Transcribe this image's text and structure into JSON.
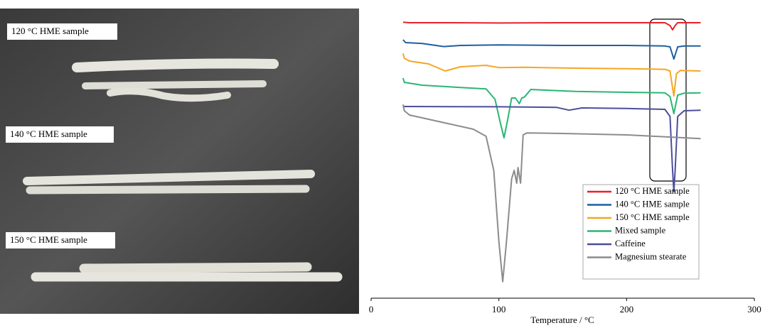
{
  "photo": {
    "labels": [
      "120 °C HME sample",
      "140 °C HME sample",
      "150 °C HME sample"
    ]
  },
  "chart_data": {
    "type": "line",
    "xlabel": "Temperature / °C",
    "xlim": [
      0,
      300
    ],
    "xticks": [
      0,
      100,
      200,
      300
    ],
    "ylim": [
      0,
      100
    ],
    "series": [
      {
        "name": "120 °C HME sample",
        "color": "#e8212a",
        "x": [
          25,
          30,
          60,
          100,
          150,
          200,
          230,
          234,
          236,
          238,
          240,
          258
        ],
        "values": [
          97.2,
          97,
          97,
          96.9,
          97,
          97,
          97,
          96,
          94.5,
          96,
          97,
          97
        ]
      },
      {
        "name": "140 °C HME sample",
        "color": "#1f5fa0",
        "x": [
          25,
          27,
          40,
          57,
          70,
          100,
          150,
          200,
          230,
          234,
          237,
          240,
          245,
          258
        ],
        "values": [
          91,
          90,
          89.7,
          88.6,
          89,
          89.2,
          89,
          89,
          88.8,
          88.5,
          84.2,
          88.5,
          88.8,
          88.8
        ]
      },
      {
        "name": "150 °C HME sample",
        "color": "#f5a623",
        "x": [
          25,
          26,
          30,
          45,
          58,
          70,
          90,
          100,
          120,
          160,
          200,
          230,
          234,
          236,
          237,
          239,
          242,
          258
        ],
        "values": [
          86.2,
          84.5,
          83.5,
          82.5,
          80,
          81.5,
          82,
          81.2,
          81.3,
          81,
          80.8,
          80.6,
          80,
          74,
          71.2,
          79,
          80.2,
          80
        ]
      },
      {
        "name": "Mixed sample",
        "color": "#2bb673",
        "x": [
          25,
          26,
          40,
          70,
          90,
          97,
          101,
          104,
          107,
          110,
          113,
          116,
          118,
          120,
          125,
          140,
          160,
          200,
          230,
          234,
          237,
          240,
          245,
          258
        ],
        "values": [
          77.5,
          76,
          75,
          74.2,
          73.7,
          70,
          62,
          56.5,
          63,
          70.5,
          70.5,
          68.5,
          70.5,
          70.8,
          73.5,
          73.2,
          72.8,
          72.5,
          72.3,
          71,
          65,
          71.5,
          72.2,
          72.3
        ]
      },
      {
        "name": "Caffeine",
        "color": "#4b4e9c",
        "x": [
          25,
          100,
          145,
          155,
          165,
          200,
          230,
          234,
          236,
          237,
          238,
          240,
          245,
          258
        ],
        "values": [
          67.5,
          67.4,
          67.2,
          66.2,
          67,
          66.8,
          66.5,
          64,
          45,
          37.5,
          45,
          64,
          66,
          66.2
        ]
      },
      {
        "name": "Magnesium stearate",
        "color": "#8c8c8c",
        "x": [
          25,
          26,
          30,
          60,
          80,
          90,
          96,
          100,
          103,
          106,
          110,
          112,
          114,
          115,
          117,
          119,
          122,
          150,
          200,
          258
        ],
        "values": [
          68.2,
          66,
          64.5,
          61.5,
          59.5,
          57,
          45,
          20,
          5.8,
          20,
          42,
          45,
          40.5,
          46,
          40.5,
          57.5,
          58.2,
          58,
          57.5,
          56.2
        ]
      }
    ]
  }
}
